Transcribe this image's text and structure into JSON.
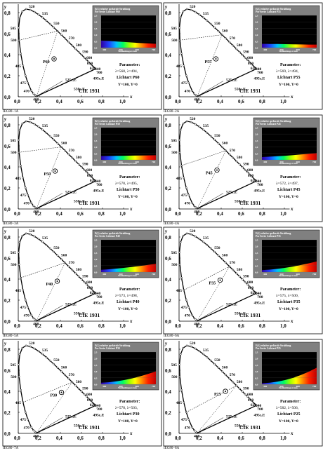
{
  "common": {
    "cie_label": "CIE 1931",
    "x_axis_letter": "x",
    "y_axis_letter": "y",
    "x_ticks": [
      "0,0",
      "0,2",
      "0,4",
      "0,6",
      "0,8",
      "1,0"
    ],
    "y_ticks": [
      "0,0",
      "0,2",
      "0,4",
      "0,6",
      "0,8"
    ],
    "wavelength_labels": [
      "520",
      "535",
      "505",
      "550",
      "560",
      "570",
      "500",
      "580",
      "590",
      "600",
      "610",
      "620",
      "640",
      "700",
      "495c,E",
      "485",
      "475",
      "470",
      "400",
      "525c,E",
      "550c,E"
    ],
    "inset_title": "E(λ) relative spektrale Strahlung",
    "inset_xlabel": "Wellenlänge λ/nm",
    "inset_y_ticks": [
      "2,5",
      "2,0",
      "1,5",
      "1,0",
      "0,5",
      "0,0"
    ],
    "inset_x_ticks": [
      "400",
      "500",
      "600",
      "700"
    ],
    "param_heading": "Parameter:",
    "y_line": "Y",
    "colors": {
      "panel_border": "#000000",
      "inset_bg": "#808080",
      "plot_bg": "#000000"
    }
  },
  "panels": [
    {
      "code": "IEG80−1A",
      "lamp": "P60",
      "lines": [
        "λ",
        "=568, λ",
        "=494,"
      ],
      "lichtart": "Lichtart P60",
      "yn": "Y",
      "w": "=100, Y",
      "n": "=0",
      "inset_series": "Pes-Serie: Lichtart P60",
      "power": [
        0.55,
        0.52,
        0.48,
        0.44,
        0.4,
        0.36,
        0.33,
        0.3
      ],
      "white_point": [
        0.34,
        0.36
      ],
      "dominant_wl": "568",
      "comp_wl": "494"
    },
    {
      "code": "IEG80−2A",
      "lamp": "P55",
      "lines": [
        "λ",
        "=569, λ",
        "=494,"
      ],
      "lichtart": "Lichtart P55",
      "yn": "Y",
      "w": "=100, Y",
      "n": "=0",
      "inset_series": "Pes-Serie: Lichtart P55",
      "power": [
        0.3,
        0.29,
        0.28,
        0.27,
        0.26,
        0.25,
        0.24,
        0.24
      ],
      "white_point": [
        0.35,
        0.36
      ],
      "dominant_wl": "569",
      "comp_wl": "494"
    },
    {
      "code": "IEG80−3A",
      "lamp": "P50",
      "lines": [
        "λ",
        "=570, λ",
        "=495,"
      ],
      "lichtart": "Lichtart P50",
      "yn": "Y",
      "w": "=100, Y",
      "n": "=0",
      "inset_series": "Pes-Serie: Lichtart P50",
      "power": [
        0.3,
        0.3,
        0.31,
        0.32,
        0.33,
        0.34,
        0.35,
        0.36
      ],
      "white_point": [
        0.35,
        0.36
      ],
      "dominant_wl": "570",
      "comp_wl": "495"
    },
    {
      "code": "IEG80−4A",
      "lamp": "P45",
      "lines": [
        "λ",
        "=572, λ",
        "=497,"
      ],
      "lichtart": "Lichtart P45",
      "yn": "Y",
      "w": "=100, Y",
      "n": "=0",
      "inset_series": "Pes-Serie: Lichtart P45",
      "power": [
        0.22,
        0.25,
        0.28,
        0.32,
        0.37,
        0.42,
        0.47,
        0.52
      ],
      "white_point": [
        0.36,
        0.37
      ],
      "dominant_wl": "572",
      "comp_wl": "497"
    },
    {
      "code": "IEG80−5A",
      "lamp": "P40",
      "lines": [
        "λ",
        "=573, λ",
        "=498,"
      ],
      "lichtart": "Lichtart P40",
      "yn": "Y",
      "w": "=100, Y",
      "n": "=0",
      "inset_series": "Pes-Serie: Lichtart P40",
      "power": [
        0.18,
        0.22,
        0.27,
        0.33,
        0.4,
        0.48,
        0.56,
        0.64
      ],
      "white_point": [
        0.37,
        0.38
      ],
      "dominant_wl": "573",
      "comp_wl": "498"
    },
    {
      "code": "IEG80−6A",
      "lamp": "P35",
      "lines": [
        "λ",
        "=575, λ",
        "=500,"
      ],
      "lichtart": "Lichtart P35",
      "yn": "Y",
      "w": "=100, Y",
      "n": "=0",
      "inset_series": "Pes-Serie: Lichtart P35",
      "power": [
        0.15,
        0.19,
        0.25,
        0.33,
        0.43,
        0.55,
        0.68,
        0.82
      ],
      "white_point": [
        0.39,
        0.39
      ],
      "dominant_wl": "575",
      "comp_wl": "500"
    },
    {
      "code": "IEG80−7A",
      "lamp": "P30",
      "lines": [
        "λ",
        "=578, λ",
        "=503,"
      ],
      "lichtart": "Lichtart P30",
      "yn": "Y",
      "w": "=100, Y",
      "n": "=0",
      "inset_series": "Pes-Serie: Lichtart P30",
      "power": [
        0.12,
        0.16,
        0.23,
        0.33,
        0.46,
        0.62,
        0.8,
        1.0
      ],
      "white_point": [
        0.41,
        0.39
      ],
      "dominant_wl": "578",
      "comp_wl": "503"
    },
    {
      "code": "IEG80−8A",
      "lamp": "P25",
      "lines": [
        "λ",
        "=582, λ",
        "=506,"
      ],
      "lichtart": "Lichtart P25",
      "yn": "Y",
      "w": "=100, Y",
      "n": "=0",
      "inset_series": "Pes-Serie: Lichtart P25",
      "power": [
        0.08,
        0.12,
        0.2,
        0.33,
        0.5,
        0.72,
        0.98,
        1.28
      ],
      "white_point": [
        0.44,
        0.4
      ],
      "dominant_wl": "582",
      "comp_wl": "506"
    }
  ]
}
